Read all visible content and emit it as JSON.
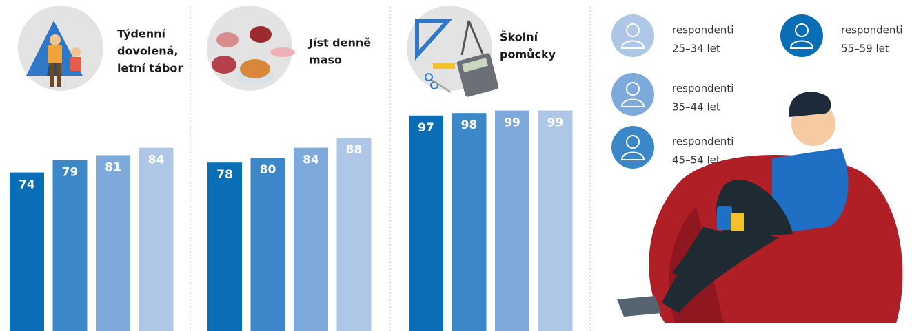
{
  "chart_data": [
    {
      "type": "bar",
      "title": [
        "Týdenní",
        "dovolená,",
        "letní tábor"
      ],
      "values": [
        74,
        79,
        81,
        84
      ],
      "colors": [
        "#0a6eb7",
        "#3c87c8",
        "#7ea9db",
        "#afc7e7"
      ],
      "ylim": [
        10,
        130
      ]
    },
    {
      "type": "bar",
      "title": [
        "Jíst denně",
        "maso"
      ],
      "values": [
        78,
        80,
        84,
        88
      ],
      "colors": [
        "#0a6eb7",
        "#3c87c8",
        "#7ea9db",
        "#afc7e7"
      ],
      "ylim": [
        10,
        130
      ]
    },
    {
      "type": "bar",
      "title": [
        "Školní",
        "pomůcky"
      ],
      "values": [
        97,
        98,
        99,
        99
      ],
      "colors": [
        "#0a6eb7",
        "#3c87c8",
        "#7ea9db",
        "#afc7e7"
      ],
      "ylim": [
        10,
        130
      ]
    }
  ],
  "legend": [
    {
      "lines": [
        "respondenti",
        "25–34 let"
      ],
      "color": "#afc7e7"
    },
    {
      "lines": [
        "respondenti",
        "35–44 let"
      ],
      "color": "#7ea9db"
    },
    {
      "lines": [
        "respondenti",
        "45–54 let"
      ],
      "color": "#3c87c8"
    },
    {
      "lines": [
        "respondenti",
        "55–59 let"
      ],
      "color": "#0a6eb7"
    }
  ]
}
